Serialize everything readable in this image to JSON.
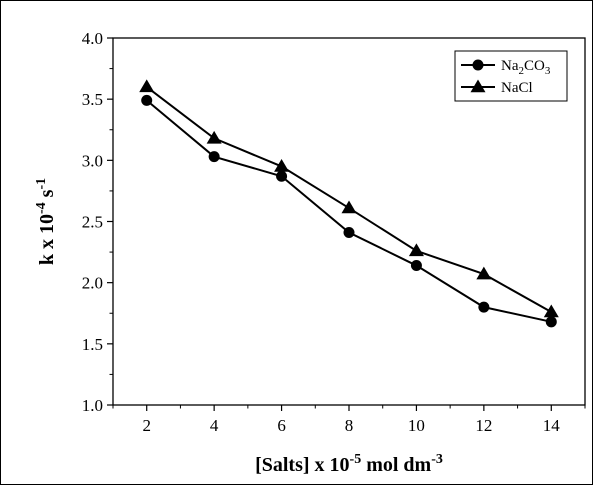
{
  "chart_data": {
    "type": "line",
    "x": [
      2,
      4,
      6,
      8,
      10,
      12,
      14
    ],
    "series": [
      {
        "name": "Na2CO3",
        "marker": "circle",
        "values": [
          3.49,
          3.03,
          2.87,
          2.41,
          2.14,
          1.8,
          1.68
        ]
      },
      {
        "name": "NaCl",
        "marker": "triangle",
        "values": [
          3.6,
          3.18,
          2.95,
          2.61,
          2.26,
          2.07,
          1.76
        ]
      }
    ],
    "xlabel": {
      "main": "[Salts] x 10",
      "exp1": "-5",
      "mid": " mol dm",
      "exp2": "-3"
    },
    "ylabel": {
      "main": "k x 10",
      "exp1": "-4",
      "mid": " s",
      "exp2": "-1"
    },
    "legend": {
      "placement": "top-right",
      "items": [
        {
          "pre": "Na",
          "sub1": "2",
          "mid": "CO",
          "sub2": "3"
        },
        {
          "pre": "NaCl",
          "sub1": "",
          "mid": "",
          "sub2": ""
        }
      ]
    },
    "xlim": [
      1,
      15
    ],
    "ylim": [
      1.0,
      4.0
    ],
    "xticks": [
      2,
      4,
      6,
      8,
      10,
      12,
      14
    ],
    "yticks": [
      "1.0",
      "1.5",
      "2.0",
      "2.5",
      "3.0",
      "3.5",
      "4.0"
    ],
    "grid": false,
    "line_color": "#000000"
  }
}
